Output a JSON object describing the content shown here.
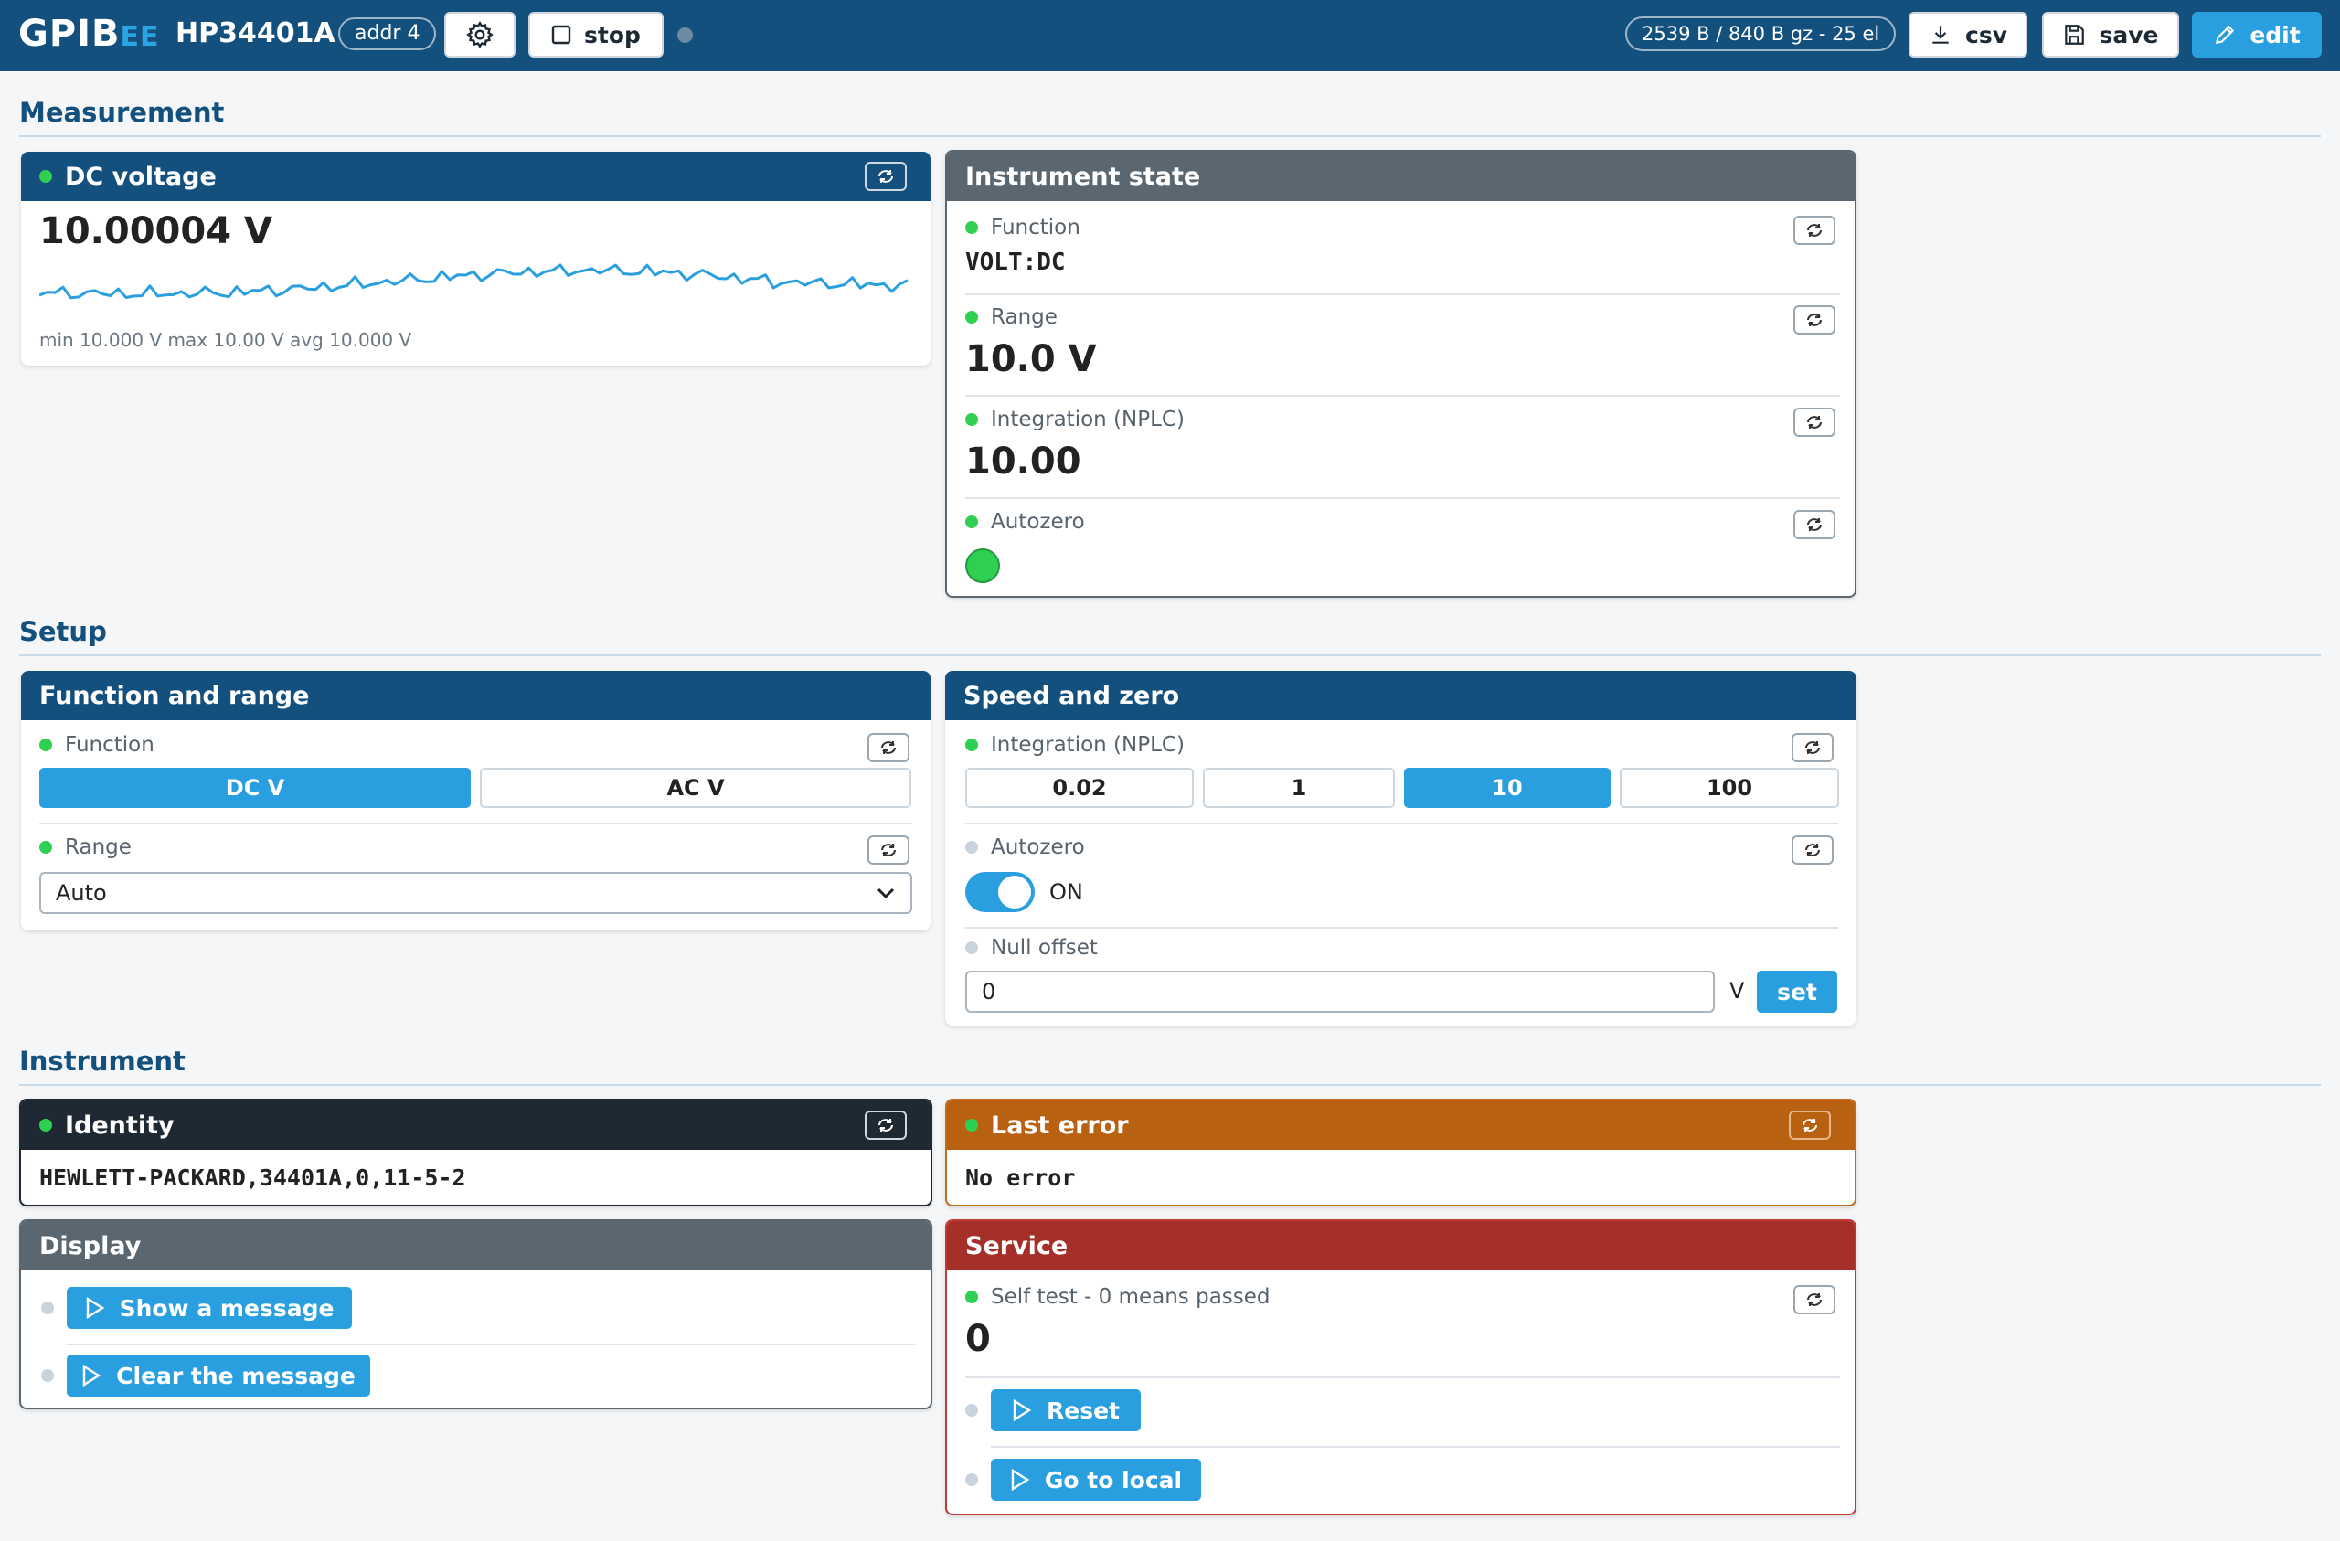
{
  "topbar": {
    "brand_main": "GPIB",
    "brand_suffix": "EE",
    "device": "HP34401A",
    "address": "addr 4",
    "stop_label": "stop",
    "stats": "2539 B / 840 B gz - 25 el",
    "csv_label": "csv",
    "save_label": "save",
    "edit_label": "edit"
  },
  "sections": {
    "measurement": "Measurement",
    "setup": "Setup",
    "instrument": "Instrument"
  },
  "dc_voltage": {
    "title": "DC voltage",
    "value": "10.00004 V",
    "stats": "min 10.000 V max 10.00 V avg 10.000 V",
    "line_color": "#2a9fe0"
  },
  "instrument_state": {
    "title": "Instrument state",
    "function_label": "Function",
    "function_value": "VOLT:DC",
    "range_label": "Range",
    "range_value": "10.0 V",
    "nplc_label": "Integration (NPLC)",
    "nplc_value": "10.00",
    "autozero_label": "Autozero",
    "autozero_on": true
  },
  "function_range": {
    "title": "Function and range",
    "function_label": "Function",
    "options": [
      "DC V",
      "AC V"
    ],
    "selected": "DC V",
    "range_label": "Range",
    "range_value": "Auto"
  },
  "speed_zero": {
    "title": "Speed and zero",
    "nplc_label": "Integration (NPLC)",
    "nplc_options": [
      "0.02",
      "1",
      "10",
      "100"
    ],
    "nplc_selected": "10",
    "autozero_label": "Autozero",
    "autozero_state": "ON",
    "null_label": "Null offset",
    "null_value": "0",
    "null_unit": "V",
    "set_label": "set"
  },
  "identity": {
    "title": "Identity",
    "value": "HEWLETT-PACKARD,34401A,0,11-5-2"
  },
  "last_error": {
    "title": "Last error",
    "value": "No error"
  },
  "display": {
    "title": "Display",
    "show_label": "Show a message",
    "clear_label": "Clear the message"
  },
  "service": {
    "title": "Service",
    "selftest_label": "Self test - 0 means passed",
    "selftest_value": "0",
    "reset_label": "Reset",
    "local_label": "Go to local"
  },
  "colors": {
    "header_blue": "#14507e",
    "accent": "#2a9fe0",
    "ok_green": "#2fcf52",
    "error_orange": "#b86211",
    "service_red": "#a5302a"
  }
}
